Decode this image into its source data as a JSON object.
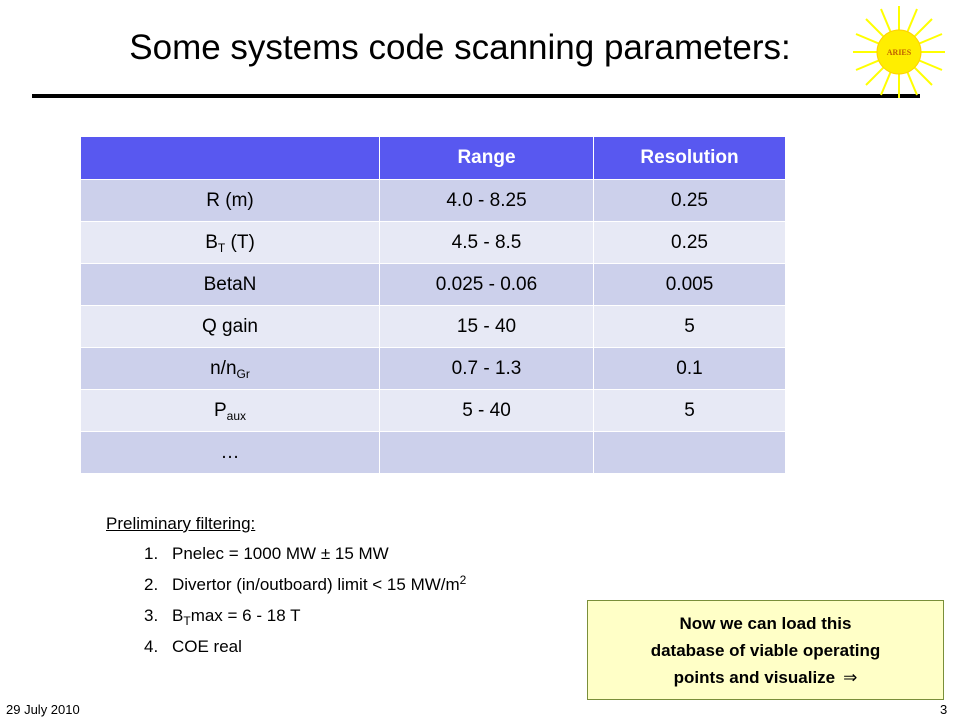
{
  "title": "Some systems code scanning parameters:",
  "logo": {
    "text": "ARIES",
    "icon": "sun-logo-icon",
    "ray_color": "#ffff00",
    "disc_color": "#ffee00",
    "text_color": "#c06000"
  },
  "table": {
    "headers": [
      "",
      "Range",
      "Resolution"
    ],
    "rows": [
      {
        "param": "R (m)",
        "range": "4.0 - 8.25",
        "resolution": "0.25"
      },
      {
        "param": "B",
        "param_sub": "T",
        "param_suffix": " (T)",
        "range": "4.5 - 8.5",
        "resolution": "0.25"
      },
      {
        "param": "BetaN",
        "range": "0.025 - 0.06",
        "resolution": "0.005"
      },
      {
        "param": "Q gain",
        "range": "15 - 40",
        "resolution": "5"
      },
      {
        "param": "n/n",
        "param_sub": "Gr",
        "range": "0.7 - 1.3",
        "resolution": "0.1"
      },
      {
        "param": "P",
        "param_sub": "aux",
        "range": "5 - 40",
        "resolution": "5"
      },
      {
        "param": "…",
        "range": "",
        "resolution": ""
      }
    ],
    "colors": {
      "header": "#5858f0",
      "row_odd": "#ccd0eb",
      "row_even": "#e7e9f5"
    }
  },
  "filtering": {
    "heading": "Preliminary filtering:",
    "items": [
      {
        "num": "1.",
        "text": "Pnelec = 1000 MW ± 15 MW"
      },
      {
        "num": "2.",
        "text": "Divertor (in/outboard) limit < 15 MW/m",
        "sup": "2"
      },
      {
        "num": "3.",
        "text_pre": "B",
        "sub": "T",
        "text": "max = 6 - 18 T"
      },
      {
        "num": "4.",
        "text": "COE real"
      }
    ]
  },
  "callout": {
    "line1": "Now we can load this",
    "line2": "database of viable operating",
    "line3": "points and visualize",
    "arrow": "⇒",
    "bg_color": "#ffffc7"
  },
  "footer": {
    "date": "29 July 2010",
    "page": "3"
  }
}
